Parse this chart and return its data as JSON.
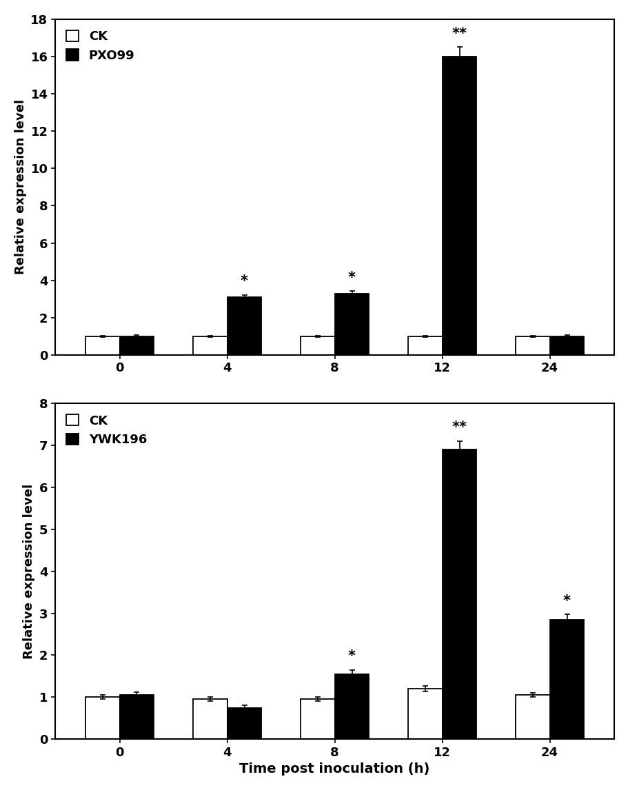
{
  "top": {
    "ylabel": "Relative expression level",
    "ylim": [
      0,
      18
    ],
    "yticks": [
      0,
      2,
      4,
      6,
      8,
      10,
      12,
      14,
      16,
      18
    ],
    "time_points": [
      "0",
      "4",
      "8",
      "12",
      "24"
    ],
    "ck_values": [
      1.0,
      1.0,
      1.0,
      1.0,
      1.0
    ],
    "ck_errors": [
      0.05,
      0.05,
      0.05,
      0.05,
      0.05
    ],
    "treat_values": [
      1.0,
      3.1,
      3.3,
      16.0,
      1.0
    ],
    "treat_errors": [
      0.07,
      0.12,
      0.12,
      0.5,
      0.07
    ],
    "treat_label": "PXO99",
    "significance": [
      "",
      "*",
      "*",
      "**",
      ""
    ],
    "ck_color": "white",
    "treat_color": "black",
    "bar_edgecolor": "black"
  },
  "bottom": {
    "ylabel": "Relative expression level",
    "xlabel": "Time post inoculation (h)",
    "ylim": [
      0,
      8
    ],
    "yticks": [
      0,
      1,
      2,
      3,
      4,
      5,
      6,
      7,
      8
    ],
    "time_points": [
      "0",
      "4",
      "8",
      "12",
      "24"
    ],
    "ck_values": [
      1.0,
      0.95,
      0.95,
      1.2,
      1.05
    ],
    "ck_errors": [
      0.05,
      0.05,
      0.05,
      0.07,
      0.05
    ],
    "treat_values": [
      1.05,
      0.75,
      1.55,
      6.9,
      2.85
    ],
    "treat_errors": [
      0.07,
      0.05,
      0.1,
      0.2,
      0.12
    ],
    "treat_label": "YWK196",
    "significance": [
      "",
      "",
      "*",
      "**",
      "*"
    ],
    "ck_color": "white",
    "treat_color": "black",
    "bar_edgecolor": "black"
  },
  "bar_width": 0.32,
  "figsize": [
    9.12,
    11.46
  ],
  "dpi": 100,
  "legend_ck": "CK",
  "fontsize_label": 13,
  "fontsize_tick": 13,
  "fontsize_legend": 13,
  "fontsize_sig": 15
}
